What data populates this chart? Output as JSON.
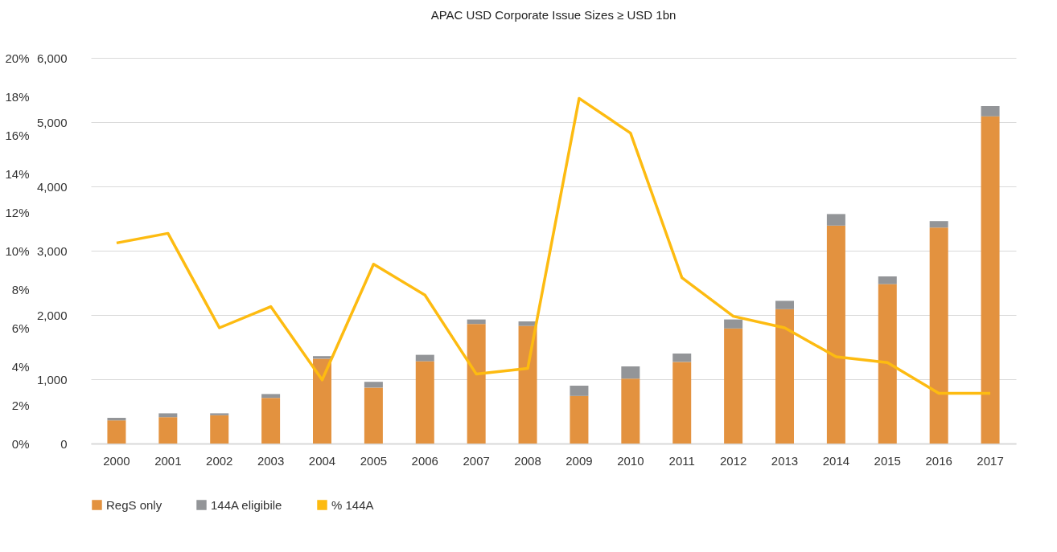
{
  "chart_data": {
    "type": "bar",
    "title": "APAC USD Corporate Issue Sizes ≥ USD 1bn",
    "categories": [
      "2000",
      "2001",
      "2002",
      "2003",
      "2004",
      "2005",
      "2006",
      "2007",
      "2008",
      "2009",
      "2010",
      "2011",
      "2012",
      "2013",
      "2014",
      "2015",
      "2016",
      "2017"
    ],
    "stacked": true,
    "series": [
      {
        "name": "RegS only",
        "color": "#e3923f",
        "values": [
          360,
          410,
          440,
          710,
          1320,
          870,
          1280,
          1860,
          1830,
          740,
          1010,
          1270,
          1790,
          2090,
          3390,
          2480,
          3360,
          5090
        ]
      },
      {
        "name": "144A eligibile",
        "color": "#939598",
        "values": [
          40,
          60,
          30,
          60,
          40,
          90,
          100,
          70,
          70,
          160,
          190,
          130,
          140,
          130,
          180,
          120,
          100,
          160
        ]
      },
      {
        "name": "% 144A",
        "type": "line",
        "axis": "y2",
        "color": "#fdbb11",
        "values": [
          10.4,
          10.9,
          6.0,
          7.1,
          3.3,
          9.3,
          7.7,
          3.6,
          3.9,
          17.9,
          16.1,
          8.6,
          6.6,
          6.0,
          4.5,
          4.2,
          2.6,
          2.6
        ]
      }
    ],
    "ylim": [
      0,
      6000
    ],
    "yticks": [
      {
        "value": 0,
        "label": "0"
      },
      {
        "value": 1000,
        "label": "1,000"
      },
      {
        "value": 2000,
        "label": "2,000"
      },
      {
        "value": 3000,
        "label": "3,000"
      },
      {
        "value": 4000,
        "label": "4,000"
      },
      {
        "value": 5000,
        "label": "5,000"
      },
      {
        "value": 6000,
        "label": "6,000"
      }
    ],
    "y2lim": [
      0,
      20
    ],
    "y2ticks": [
      {
        "value": 0,
        "label": "0%"
      },
      {
        "value": 2,
        "label": "2%"
      },
      {
        "value": 4,
        "label": "4%"
      },
      {
        "value": 6,
        "label": "6%"
      },
      {
        "value": 8,
        "label": "8%"
      },
      {
        "value": 10,
        "label": "10%"
      },
      {
        "value": 12,
        "label": "12%"
      },
      {
        "value": 14,
        "label": "14%"
      },
      {
        "value": 16,
        "label": "16%"
      },
      {
        "value": 18,
        "label": "18%"
      },
      {
        "value": 20,
        "label": "20%"
      }
    ],
    "grid": "y",
    "legend": "bottom",
    "line_style": "solid",
    "marker": "none"
  }
}
